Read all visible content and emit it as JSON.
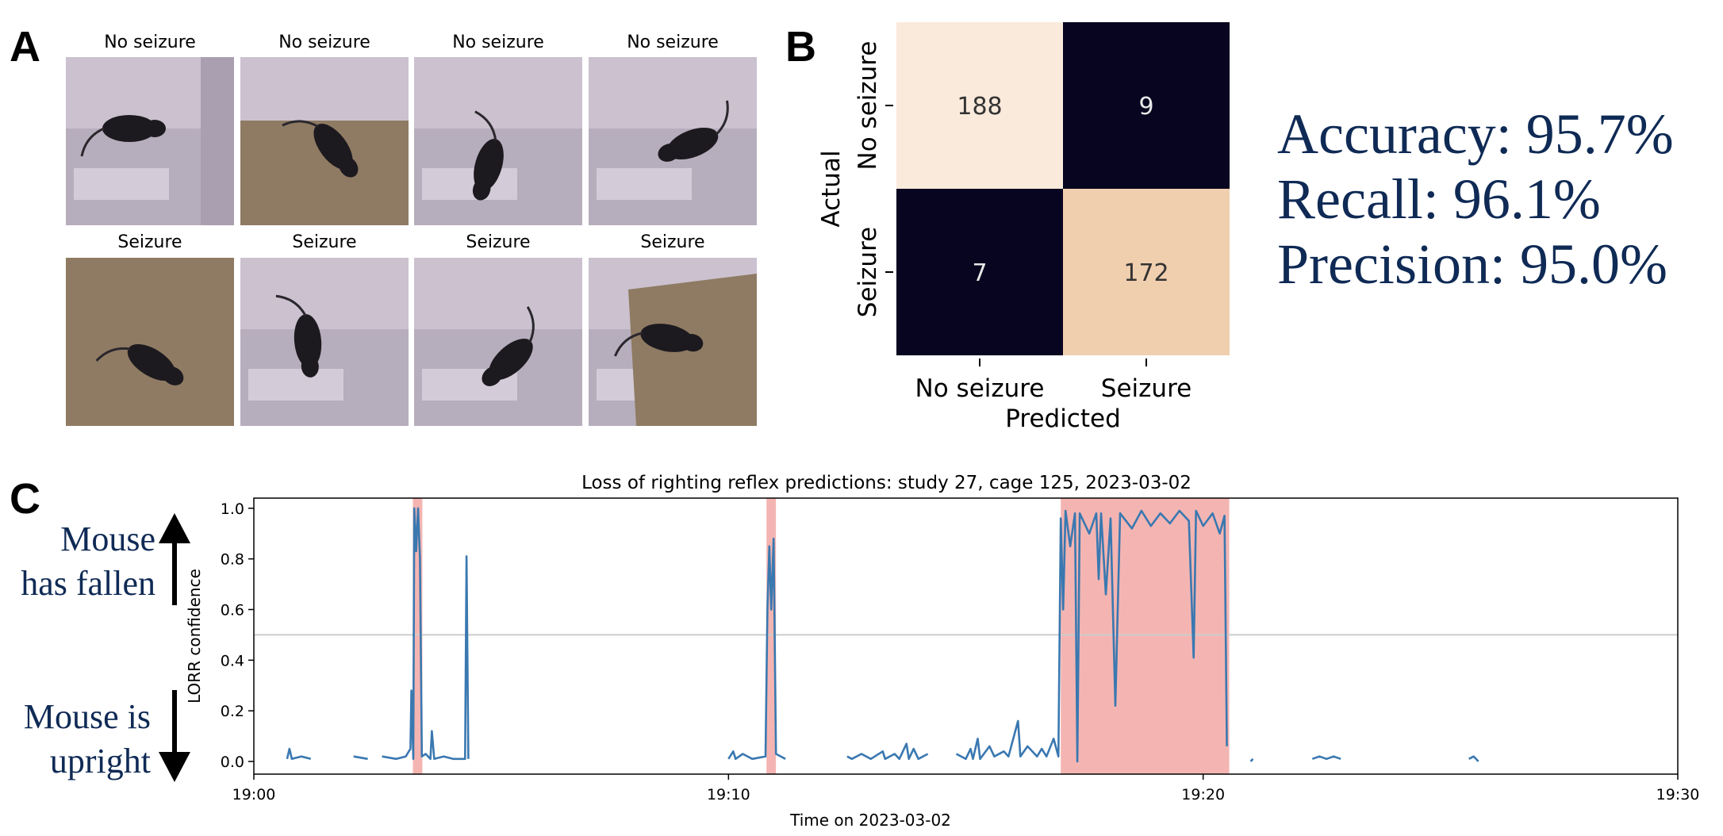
{
  "panels": {
    "a": "A",
    "b": "B",
    "c": "C"
  },
  "thumbnails": [
    {
      "label": "No seizure",
      "scene": "bedding-right"
    },
    {
      "label": "No seizure",
      "scene": "bedding-bottom"
    },
    {
      "label": "No seizure",
      "scene": "plastic"
    },
    {
      "label": "No seizure",
      "scene": "plastic"
    },
    {
      "label": "Seizure",
      "scene": "bedding-full"
    },
    {
      "label": "Seizure",
      "scene": "plastic"
    },
    {
      "label": "Seizure",
      "scene": "plastic"
    },
    {
      "label": "Seizure",
      "scene": "bedding-corner"
    }
  ],
  "metrics": {
    "accuracy": "Accuracy: 95.7%",
    "recall": "Recall: 96.1%",
    "precision": "Precision: 95.0%"
  },
  "annotations": {
    "fallen_line1": "Mouse",
    "fallen_line2": "has fallen",
    "upright_line1": "Mouse is",
    "upright_line2": "upright"
  },
  "colors": {
    "cm_dark": "#07051f",
    "cm_light": "#faeadb",
    "cm_mid": "#f0cfaf",
    "series": "#3a78b0",
    "shade": "#f2a8a5",
    "text_blue": "#0f2a55"
  },
  "chart_data": [
    {
      "type": "heatmap",
      "xlabel": "Predicted",
      "ylabel": "Actual",
      "x_categories": [
        "No seizure",
        "Seizure"
      ],
      "y_categories": [
        "No seizure",
        "Seizure"
      ],
      "values": [
        [
          188,
          9
        ],
        [
          7,
          172
        ]
      ]
    },
    {
      "type": "line",
      "title": "Loss of righting reflex predictions: study 27, cage 125, 2023-03-02",
      "xlabel": "Time on 2023-03-02",
      "ylabel": "LORR confidence",
      "xlim": [
        0,
        30
      ],
      "ylim": [
        -0.05,
        1.04
      ],
      "x_ticks": [
        0,
        10,
        20,
        30
      ],
      "x_tick_labels": [
        "19:00",
        "19:10",
        "19:20",
        "19:30"
      ],
      "y_ticks": [
        0.0,
        0.2,
        0.4,
        0.6,
        0.8,
        1.0
      ],
      "y_tick_labels": [
        "0.0",
        "0.2",
        "0.4",
        "0.6",
        "0.8",
        "1.0"
      ],
      "threshold": 0.5,
      "shaded_regions": [
        [
          3.35,
          3.55
        ],
        [
          10.8,
          11.0
        ],
        [
          17.0,
          20.55
        ]
      ],
      "series": [
        {
          "values": [
            [
              0.7,
              0.01
            ],
            [
              0.75,
              0.05
            ],
            [
              0.8,
              0.01
            ],
            [
              1.0,
              0.02
            ],
            [
              1.2,
              0.01
            ],
            [
              1.5,
              0.02
            ],
            [
              1.8,
              0.01
            ],
            [
              2.1,
              0.02
            ],
            [
              2.4,
              0.01
            ],
            [
              2.7,
              0.02
            ],
            [
              3.0,
              0.01
            ],
            [
              3.2,
              0.02
            ],
            [
              3.3,
              0.05
            ],
            [
              3.32,
              0.28
            ],
            [
              3.36,
              0.01
            ],
            [
              3.38,
              1.0
            ],
            [
              3.42,
              0.83
            ],
            [
              3.46,
              1.0
            ],
            [
              3.5,
              0.8
            ],
            [
              3.54,
              0.02
            ],
            [
              3.62,
              0.03
            ],
            [
              3.72,
              0.01
            ],
            [
              3.75,
              0.12
            ],
            [
              3.8,
              0.01
            ],
            [
              4.0,
              0.02
            ],
            [
              4.2,
              0.01
            ],
            [
              4.45,
              0.01
            ],
            [
              4.48,
              0.81
            ],
            [
              4.52,
              0.01
            ],
            [
              5.0,
              0.01
            ],
            [
              6.0,
              0.02
            ],
            [
              7.0,
              0.01
            ],
            [
              8.0,
              0.02
            ],
            [
              9.0,
              0.01
            ],
            [
              9.5,
              0.02
            ],
            [
              10.0,
              0.01
            ],
            [
              10.1,
              0.04
            ],
            [
              10.15,
              0.01
            ],
            [
              10.3,
              0.03
            ],
            [
              10.5,
              0.01
            ],
            [
              10.78,
              0.02
            ],
            [
              10.82,
              0.6
            ],
            [
              10.86,
              0.85
            ],
            [
              10.9,
              0.6
            ],
            [
              10.95,
              0.88
            ],
            [
              11.0,
              0.03
            ],
            [
              11.2,
              0.01
            ],
            [
              12.0,
              0.01
            ],
            [
              12.5,
              0.02
            ],
            [
              12.6,
              0.01
            ],
            [
              12.8,
              0.03
            ],
            [
              13.0,
              0.01
            ],
            [
              13.25,
              0.04
            ],
            [
              13.3,
              0.01
            ],
            [
              13.5,
              0.03
            ],
            [
              13.6,
              0.01
            ],
            [
              13.75,
              0.07
            ],
            [
              13.8,
              0.01
            ],
            [
              13.9,
              0.05
            ],
            [
              14.0,
              0.01
            ],
            [
              14.2,
              0.03
            ],
            [
              14.5,
              0.02
            ],
            [
              14.8,
              0.03
            ],
            [
              15.0,
              0.01
            ],
            [
              15.1,
              0.05
            ],
            [
              15.15,
              0.01
            ],
            [
              15.25,
              0.09
            ],
            [
              15.3,
              0.01
            ],
            [
              15.5,
              0.06
            ],
            [
              15.6,
              0.02
            ],
            [
              15.8,
              0.04
            ],
            [
              15.9,
              0.02
            ],
            [
              16.1,
              0.16
            ],
            [
              16.15,
              0.02
            ],
            [
              16.3,
              0.06
            ],
            [
              16.5,
              0.02
            ],
            [
              16.6,
              0.05
            ],
            [
              16.7,
              0.02
            ],
            [
              16.85,
              0.09
            ],
            [
              16.95,
              0.02
            ],
            [
              17.0,
              0.96
            ],
            [
              17.05,
              0.6
            ],
            [
              17.1,
              0.99
            ],
            [
              17.2,
              0.85
            ],
            [
              17.3,
              0.98
            ],
            [
              17.35,
              0.0
            ],
            [
              17.4,
              0.98
            ],
            [
              17.6,
              0.9
            ],
            [
              17.75,
              0.98
            ],
            [
              17.8,
              0.72
            ],
            [
              17.85,
              0.98
            ],
            [
              17.95,
              0.66
            ],
            [
              18.05,
              0.96
            ],
            [
              18.15,
              0.22
            ],
            [
              18.25,
              0.98
            ],
            [
              18.5,
              0.92
            ],
            [
              18.7,
              0.99
            ],
            [
              18.9,
              0.93
            ],
            [
              19.1,
              0.98
            ],
            [
              19.3,
              0.94
            ],
            [
              19.5,
              0.99
            ],
            [
              19.7,
              0.95
            ],
            [
              19.8,
              0.41
            ],
            [
              19.85,
              0.99
            ],
            [
              20.0,
              0.93
            ],
            [
              20.2,
              0.98
            ],
            [
              20.35,
              0.9
            ],
            [
              20.45,
              0.97
            ],
            [
              20.5,
              0.06
            ],
            [
              21.0,
              0.0
            ],
            [
              21.05,
              0.01
            ],
            [
              22.3,
              0.01
            ],
            [
              22.45,
              0.02
            ],
            [
              22.6,
              0.01
            ],
            [
              22.75,
              0.02
            ],
            [
              22.9,
              0.01
            ],
            [
              23.5,
              0.0
            ],
            [
              24.0,
              0.0
            ],
            [
              24.5,
              0.0
            ],
            [
              24.8,
              0.01
            ],
            [
              25.6,
              0.01
            ],
            [
              25.7,
              0.02
            ],
            [
              25.8,
              0.0
            ]
          ]
        }
      ]
    }
  ]
}
